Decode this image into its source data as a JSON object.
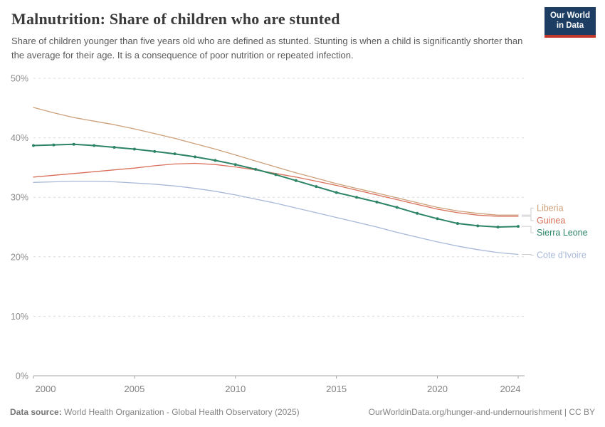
{
  "header": {
    "title": "Malnutrition: Share of children who are stunted",
    "subtitle": "Share of children younger than five years old who are defined as stunted. Stunting is when a child is significantly shorter than the average for their age. It is a consequence of poor nutrition or repeated infection.",
    "logo": {
      "line1": "Our World",
      "line2": "in Data",
      "bg_color": "#1d3d63",
      "accent_color": "#c0392b"
    }
  },
  "footer": {
    "source_label": "Data source:",
    "source_text": " World Health Organization - Global Health Observatory (2025)",
    "link_text": "OurWorldinData.org/hunger-and-undernourishment | CC BY"
  },
  "chart_data": {
    "type": "line",
    "title": "Malnutrition: Share of children who are stunted",
    "xlabel": "",
    "ylabel": "",
    "ylim": [
      0,
      50
    ],
    "xlim": [
      2000,
      2024
    ],
    "grid": "horizontal-dashed",
    "legend_position": "right-of-line-ends",
    "y_ticks": [
      {
        "value": 0,
        "label": "0%"
      },
      {
        "value": 10,
        "label": "10%"
      },
      {
        "value": 20,
        "label": "20%"
      },
      {
        "value": 30,
        "label": "30%"
      },
      {
        "value": 40,
        "label": "40%"
      },
      {
        "value": 50,
        "label": "50%"
      }
    ],
    "x_ticks": [
      2000,
      2005,
      2010,
      2015,
      2020,
      2024
    ],
    "x": [
      2000,
      2001,
      2002,
      2003,
      2004,
      2005,
      2006,
      2007,
      2008,
      2009,
      2010,
      2011,
      2012,
      2013,
      2014,
      2015,
      2016,
      2017,
      2018,
      2019,
      2020,
      2021,
      2022,
      2023,
      2024
    ],
    "series": [
      {
        "name": "Liberia",
        "color": "#cda07a",
        "markers": false,
        "line_width": 1.3,
        "label_dy": -10,
        "values": [
          45.1,
          44.2,
          43.4,
          42.8,
          42.2,
          41.5,
          40.7,
          39.9,
          39.0,
          38.1,
          37.1,
          36.1,
          35.1,
          34.1,
          33.2,
          32.3,
          31.5,
          30.7,
          29.9,
          29.1,
          28.3,
          27.7,
          27.3,
          27.0,
          27.0
        ]
      },
      {
        "name": "Guinea",
        "color": "#d8705b",
        "markers": false,
        "line_width": 1.3,
        "label_dy": 6,
        "values": [
          33.4,
          33.7,
          34.0,
          34.3,
          34.6,
          34.9,
          35.3,
          35.6,
          35.7,
          35.5,
          35.1,
          34.6,
          34.0,
          33.4,
          32.7,
          32.0,
          31.2,
          30.4,
          29.6,
          28.8,
          28.0,
          27.4,
          27.0,
          26.8,
          26.8
        ]
      },
      {
        "name": "Sierra Leone",
        "color": "#2c8465",
        "markers": true,
        "line_width": 2,
        "label_dy": 9,
        "values": [
          38.7,
          38.8,
          38.9,
          38.7,
          38.4,
          38.1,
          37.7,
          37.3,
          36.8,
          36.2,
          35.5,
          34.7,
          33.8,
          32.8,
          31.8,
          30.8,
          30.0,
          29.2,
          28.3,
          27.3,
          26.4,
          25.6,
          25.2,
          25.0,
          25.1
        ]
      },
      {
        "name": "Cote d'Ivoire",
        "color": "#a8b8d8",
        "markers": false,
        "line_width": 1.3,
        "label_dy": 1,
        "values": [
          32.5,
          32.6,
          32.7,
          32.7,
          32.6,
          32.4,
          32.2,
          31.9,
          31.5,
          31.0,
          30.4,
          29.7,
          29.0,
          28.2,
          27.4,
          26.6,
          25.8,
          25.0,
          24.1,
          23.3,
          22.5,
          21.8,
          21.2,
          20.7,
          20.4
        ]
      }
    ],
    "style": {
      "gridline_color": "#dcdcdc",
      "axis_color": "#a5a5a5",
      "tick_label_color": "#8c8c8c",
      "connector_color": "#cccccc"
    }
  }
}
